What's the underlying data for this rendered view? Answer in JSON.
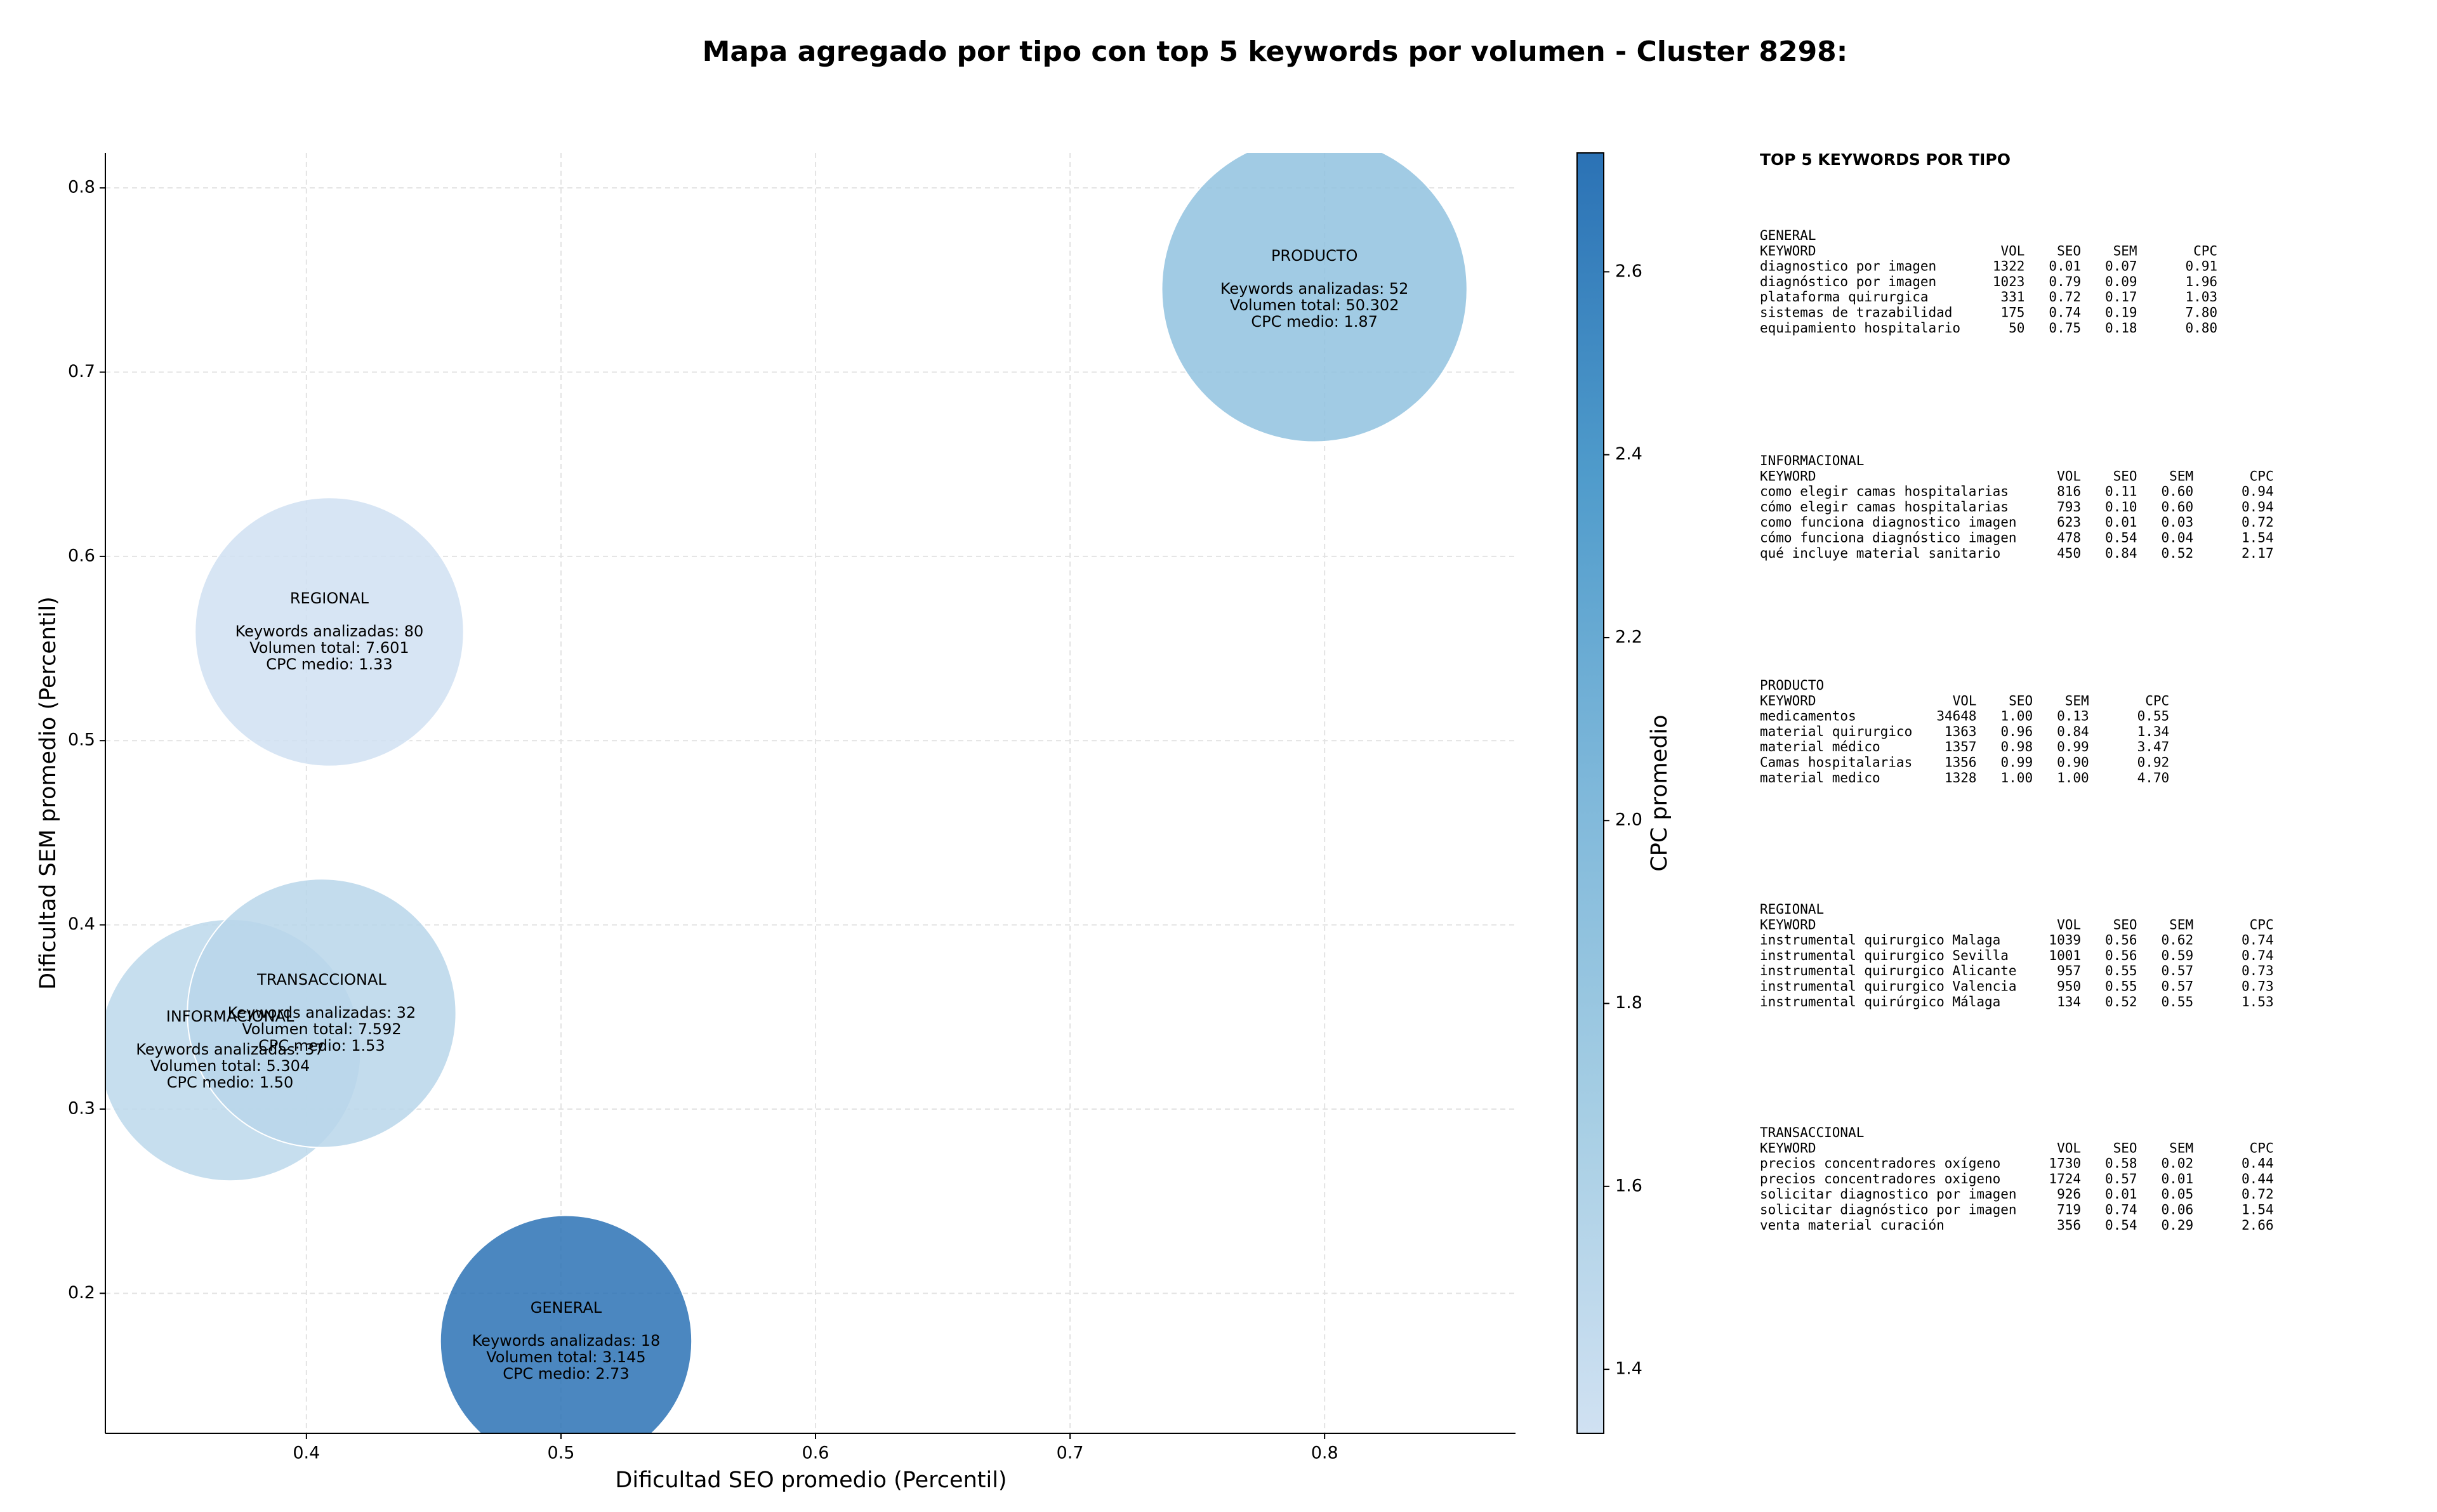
{
  "chart_data": {
    "type": "bubble",
    "title": "Mapa agregado por tipo con top 5 keywords por volumen - Cluster 8298:",
    "xlabel": "Dificultad SEO promedio (Percentil)",
    "ylabel": "Dificultad SEM promedio (Percentil)",
    "labels": [
      "GENERAL",
      "INFORMACIONAL",
      "PRODUCTO",
      "REGIONAL",
      "TRANSACCIONAL"
    ],
    "x": [
      0.502,
      0.37,
      0.796,
      0.409,
      0.406
    ],
    "values": [
      0.174,
      0.332,
      0.745,
      0.559,
      0.352
    ],
    "sizes": [
      3145,
      5304,
      50302,
      7601,
      7592
    ],
    "cpc": [
      2.73,
      1.5,
      1.87,
      1.33,
      1.53
    ],
    "annotations": [
      [
        "Keywords analizadas: 18",
        "Volumen total: 3.145",
        "CPC medio: 2.73"
      ],
      [
        "Keywords analizadas: 37",
        "Volumen total: 5.304",
        "CPC medio: 1.50"
      ],
      [
        "Keywords analizadas: 52",
        "Volumen total: 50.302",
        "CPC medio: 1.87"
      ],
      [
        "Keywords analizadas: 80",
        "Volumen total: 7.601",
        "CPC medio: 1.33"
      ],
      [
        "Keywords analizadas: 32",
        "Volumen total: 7.592",
        "CPC medio: 1.53"
      ]
    ],
    "xlim": [
      0.321,
      0.875
    ],
    "xticks": [
      0.4,
      0.5,
      0.6,
      0.7,
      0.8
    ],
    "ylim": [
      0.124,
      0.819
    ],
    "yticks": [
      0.2,
      0.3,
      0.4,
      0.5,
      0.6,
      0.7,
      0.8
    ],
    "grid": true,
    "colorbar": {
      "label": "CPC promedio",
      "lim": [
        1.33,
        2.73
      ],
      "ticks": [
        1.4,
        1.6,
        1.8,
        {
          "value": 2,
          "label": "2.0"
        },
        2.2,
        2.4,
        2.6
      ],
      "colors": [
        "#d0e1f2",
        "#a6cee4",
        "#7fb8da",
        "#4f9bcb",
        "#2b72b5"
      ]
    }
  },
  "keyword_panel": {
    "title": "TOP 5 KEYWORDS POR TIPO",
    "columns": [
      "KEYWORD",
      "VOL",
      "SEO",
      "SEM",
      "CPC"
    ],
    "sections": [
      {
        "name": "GENERAL",
        "rows": [
          [
            "diagnostico por imagen",
            "1322",
            "0.01",
            "0.07",
            "0.91"
          ],
          [
            "diagnóstico por imagen",
            "1023",
            "0.79",
            "0.09",
            "1.96"
          ],
          [
            "plataforma quirurgica",
            "331",
            "0.72",
            "0.17",
            "1.03"
          ],
          [
            "sistemas de trazabilidad",
            "175",
            "0.74",
            "0.19",
            "7.80"
          ],
          [
            "equipamiento hospitalario",
            "50",
            "0.75",
            "0.18",
            "0.80"
          ]
        ]
      },
      {
        "name": "INFORMACIONAL",
        "rows": [
          [
            "como elegir camas hospitalarias",
            "816",
            "0.11",
            "0.60",
            "0.94"
          ],
          [
            "cómo elegir camas hospitalarias",
            "793",
            "0.10",
            "0.60",
            "0.94"
          ],
          [
            "como funciona diagnostico imagen",
            "623",
            "0.01",
            "0.03",
            "0.72"
          ],
          [
            "cómo funciona diagnóstico imagen",
            "478",
            "0.54",
            "0.04",
            "1.54"
          ],
          [
            "qué incluye material sanitario",
            "450",
            "0.84",
            "0.52",
            "2.17"
          ]
        ]
      },
      {
        "name": "PRODUCTO",
        "rows": [
          [
            "medicamentos",
            "34648",
            "1.00",
            "0.13",
            "0.55"
          ],
          [
            "material quirurgico",
            "1363",
            "0.96",
            "0.84",
            "1.34"
          ],
          [
            "material médico",
            "1357",
            "0.98",
            "0.99",
            "3.47"
          ],
          [
            "Camas hospitalarias",
            "1356",
            "0.99",
            "0.90",
            "0.92"
          ],
          [
            "material medico",
            "1328",
            "1.00",
            "1.00",
            "4.70"
          ]
        ]
      },
      {
        "name": "REGIONAL",
        "rows": [
          [
            "instrumental quirurgico Malaga",
            "1039",
            "0.56",
            "0.62",
            "0.74"
          ],
          [
            "instrumental quirurgico Sevilla",
            "1001",
            "0.56",
            "0.59",
            "0.74"
          ],
          [
            "instrumental quirurgico Alicante",
            "957",
            "0.55",
            "0.57",
            "0.73"
          ],
          [
            "instrumental quirurgico Valencia",
            "950",
            "0.55",
            "0.57",
            "0.73"
          ],
          [
            "instrumental quirúrgico Málaga",
            "134",
            "0.52",
            "0.55",
            "1.53"
          ]
        ]
      },
      {
        "name": "TRANSACCIONAL",
        "rows": [
          [
            "precios concentradores oxígeno",
            "1730",
            "0.58",
            "0.02",
            "0.44"
          ],
          [
            "precios concentradores oxigeno",
            "1724",
            "0.57",
            "0.01",
            "0.44"
          ],
          [
            "solicitar diagnostico por imagen",
            "926",
            "0.01",
            "0.05",
            "0.72"
          ],
          [
            "solicitar diagnóstico por imagen",
            "719",
            "0.74",
            "0.06",
            "1.54"
          ],
          [
            "venta material curación",
            "356",
            "0.54",
            "0.29",
            "2.66"
          ]
        ]
      }
    ]
  }
}
